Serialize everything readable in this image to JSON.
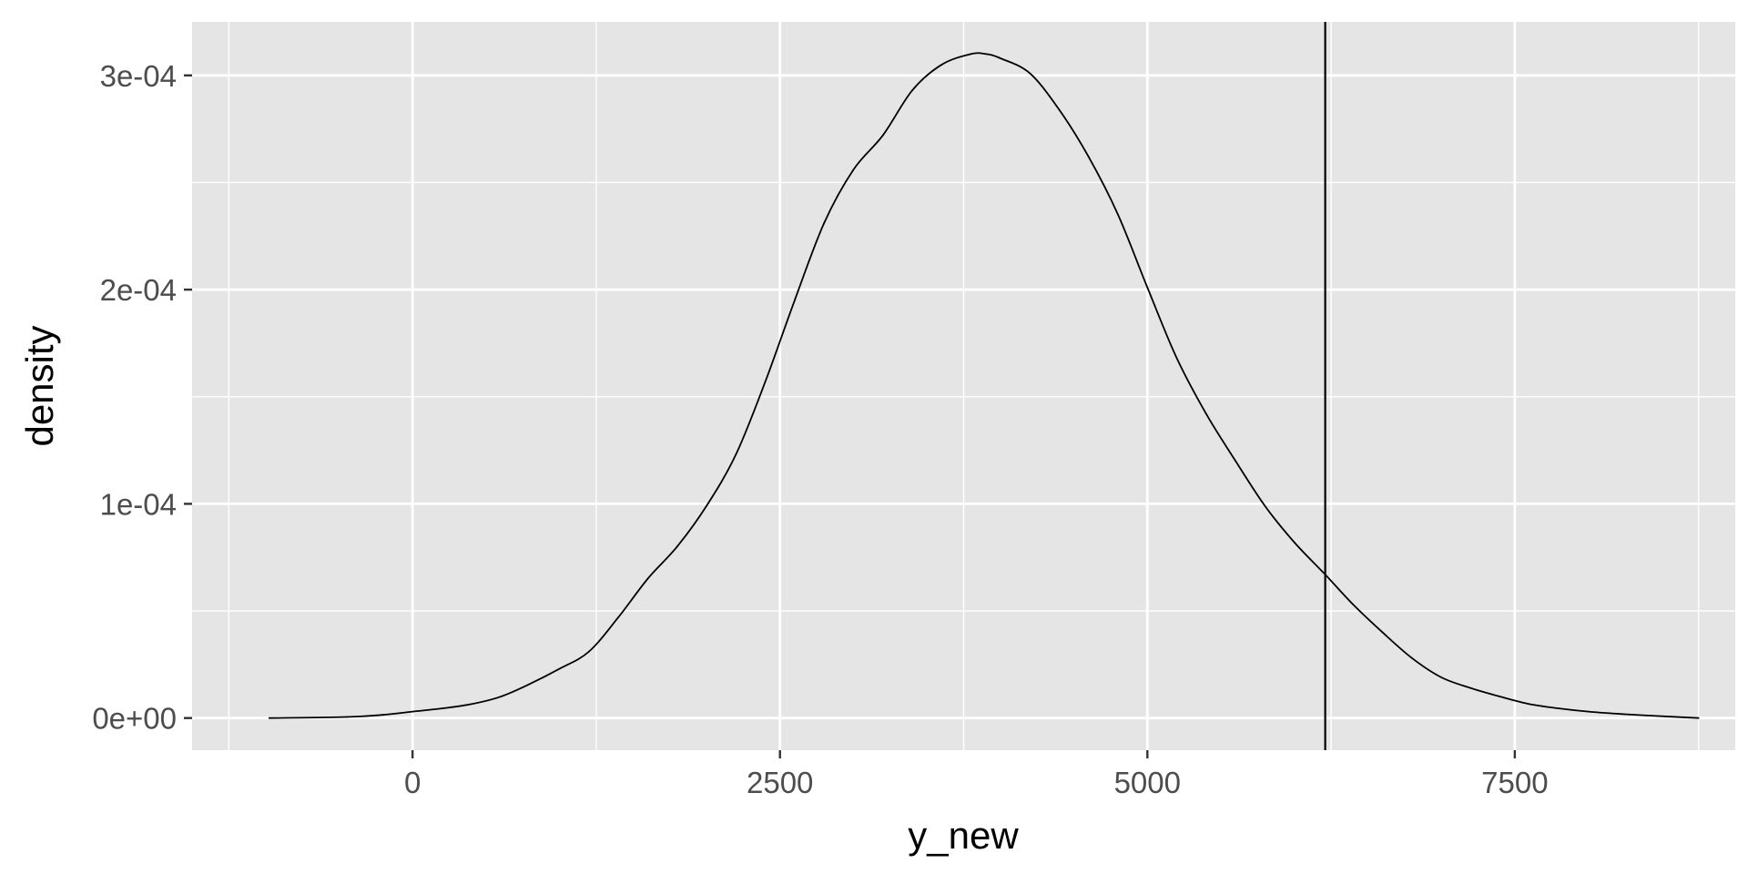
{
  "chart_data": {
    "type": "line",
    "title": "",
    "xlabel": "y_new",
    "ylabel": "density",
    "xlim": [
      -1500,
      9000
    ],
    "ylim": [
      -1.5e-05,
      0.000325
    ],
    "x_ticks": [
      0,
      2500,
      5000,
      7500
    ],
    "x_tick_labels": [
      "0",
      "2500",
      "5000",
      "7500"
    ],
    "y_ticks": [
      0,
      0.0001,
      0.0002,
      0.0003
    ],
    "y_tick_labels": [
      "0e+00",
      "1e-04",
      "2e-04",
      "3e-04"
    ],
    "grid": true,
    "legend": "none",
    "colors": {
      "panel_background": "#e5e5e5",
      "grid": "#ffffff",
      "line": "#000000",
      "tick_label": "#4d4d4d",
      "axis_title": "#000000"
    },
    "reference_line": {
      "orientation": "vertical",
      "x": 6210
    },
    "series": [
      {
        "x": [
          -975,
          -450,
          -200,
          0,
          200,
          400,
          600,
          800,
          1000,
          1200,
          1400,
          1600,
          1800,
          2000,
          2200,
          2400,
          2600,
          2800,
          3000,
          3200,
          3400,
          3600,
          3800,
          3900,
          4000,
          4200,
          4400,
          4600,
          4800,
          5000,
          5200,
          5400,
          5600,
          5800,
          6000,
          6210,
          6400,
          6600,
          6800,
          7000,
          7200,
          7400,
          7600,
          7800,
          8000,
          8200,
          8400,
          8750
        ],
        "y": [
          0.0,
          5e-07,
          1.5e-06,
          3e-06,
          4.5e-06,
          6.5e-06,
          1e-05,
          1.6e-05,
          2.3e-05,
          3.1e-05,
          4.7e-05,
          6.5e-05,
          8e-05,
          9.9e-05,
          0.000123,
          0.000157,
          0.000195,
          0.000231,
          0.000256,
          0.000272,
          0.000293,
          0.000305,
          0.00031,
          0.00031,
          0.000308,
          0.000301,
          0.000284,
          0.000262,
          0.000235,
          0.000201,
          0.000168,
          0.000142,
          0.00012,
          9.9e-05,
          8.2e-05,
          6.7e-05,
          5.3e-05,
          4e-05,
          2.8e-05,
          1.9e-05,
          1.4e-05,
          1e-05,
          6.5e-06,
          4.5e-06,
          3e-06,
          2e-06,
          1.2e-06,
          0.0
        ]
      }
    ]
  }
}
